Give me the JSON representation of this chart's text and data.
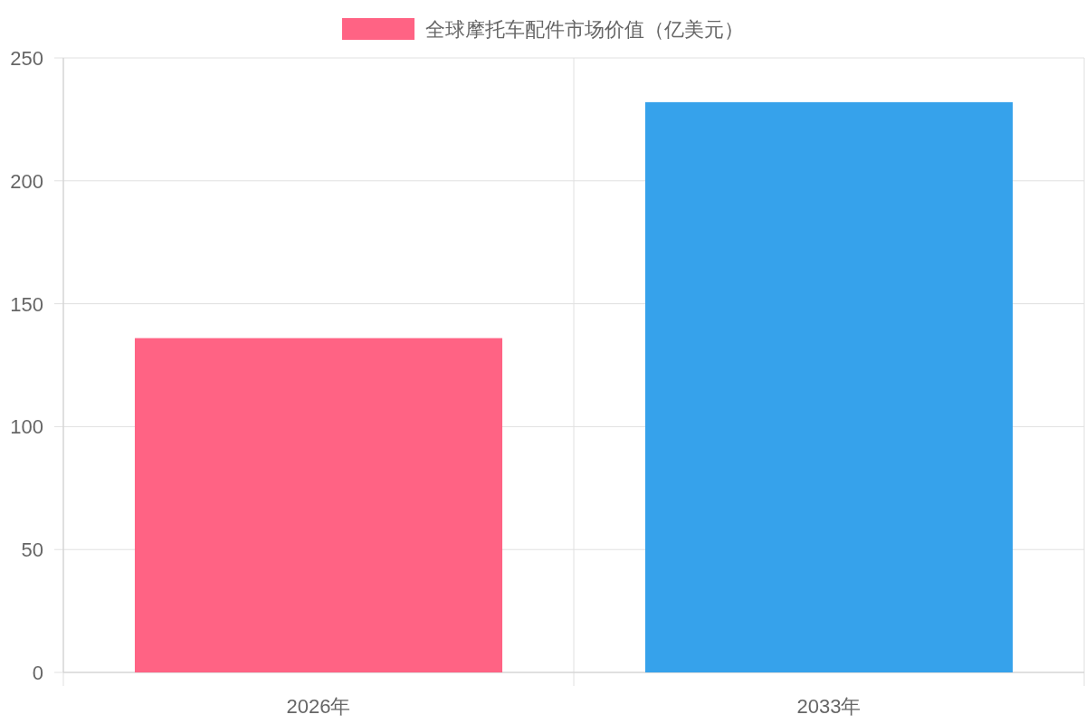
{
  "chart_data": {
    "type": "bar",
    "categories": [
      "2026年",
      "2033年"
    ],
    "series": [
      {
        "name": "全球摩托车配件市场价值（亿美元）",
        "colors": [
          "#ff6384",
          "#36a2eb"
        ],
        "values": [
          136,
          232
        ]
      }
    ],
    "ylim": [
      0,
      250
    ],
    "yticks": [
      0,
      50,
      100,
      150,
      200,
      250
    ],
    "grid": true,
    "legend": "top"
  }
}
